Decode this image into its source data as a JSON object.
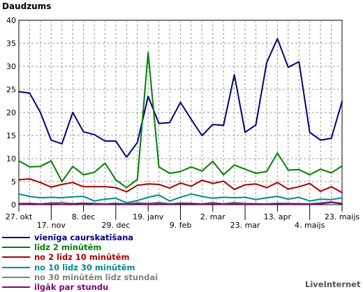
{
  "chart_data": {
    "type": "line",
    "title": "Daudzums",
    "xlabel": "",
    "ylabel": "",
    "ylim": [
      0,
      40
    ],
    "yticks": [
      "0",
      "5",
      "10",
      "15",
      "20",
      "25",
      "30",
      "35",
      "40"
    ],
    "xtick_labels": [
      "27. okt",
      "17. nov",
      "8. dec",
      "29. dec",
      "19. janv",
      "9. feb",
      "2. mar",
      "23. mar",
      "13. apr",
      "4. maijs",
      "23. maijs"
    ],
    "x": [
      "27. okt",
      "3. nov",
      "10. nov",
      "17. nov",
      "24. nov",
      "1. dec",
      "8. dec",
      "15. dec",
      "22. dec",
      "29. dec",
      "5. janv",
      "12. janv",
      "19. janv",
      "26. janv",
      "2. feb",
      "9. feb",
      "16. feb",
      "23. feb",
      "2. mar",
      "9. mar",
      "16. mar",
      "23. mar",
      "30. mar",
      "6. apr",
      "13. apr",
      "20. apr",
      "27. apr",
      "4. maijs",
      "11. maijs",
      "18. maijs",
      "23. maijs"
    ],
    "grid": true,
    "legend_position": "bottom-left",
    "series": [
      {
        "name": "vienīga caurskatīšana",
        "color": "#000080",
        "values": [
          24.5,
          24.2,
          20,
          14,
          13.2,
          20,
          15.8,
          15.2,
          13.8,
          13.8,
          10.3,
          13.5,
          23.5,
          17.6,
          17.8,
          22.2,
          18.5,
          15,
          17.4,
          17.2,
          28.2,
          15.7,
          17.3,
          30.8,
          36,
          29.8,
          31,
          15.7,
          14,
          14.4,
          22.4
        ]
      },
      {
        "name": "līdz 2 minūtēm",
        "color": "#008000",
        "values": [
          9.5,
          8.2,
          8.3,
          9.5,
          5,
          8.3,
          6.5,
          7,
          9,
          5.4,
          3.7,
          5.5,
          33,
          8.2,
          6.8,
          7.2,
          8.2,
          7.3,
          9.4,
          6.5,
          8.6,
          7.7,
          6.8,
          7.2,
          11.2,
          7.5,
          7.6,
          6.5,
          7.7,
          6.9,
          8.4
        ]
      },
      {
        "name": "no 2 līdz 10 minūtēm",
        "color": "#aa0000",
        "values": [
          5.4,
          5.6,
          4.8,
          3.8,
          4.4,
          4.8,
          3.9,
          3.9,
          3.9,
          3.7,
          2.8,
          4.2,
          4.5,
          4.4,
          3.6,
          4.7,
          4,
          5.3,
          4.6,
          5.1,
          3.3,
          4.3,
          4.5,
          3.7,
          4.8,
          3.4,
          3.9,
          4.6,
          2.9,
          3.9,
          2.6
        ]
      },
      {
        "name": "no 10 līdz 30 minūtēm",
        "color": "#008b8b",
        "values": [
          2.3,
          1.8,
          1.5,
          1.6,
          1.5,
          1.7,
          1.8,
          0.8,
          1.2,
          1.4,
          0.4,
          0.9,
          1.6,
          2.1,
          0.8,
          1.6,
          2.3,
          1.8,
          1.4,
          1.6,
          1.5,
          1.6,
          1.1,
          1.5,
          1.8,
          1.2,
          1.6,
          0.8,
          1.2,
          1.1,
          1.5
        ]
      },
      {
        "name": "no 30 minūtēm līdz stundai",
        "color": "#808080",
        "values": [
          0.3,
          0.3,
          0.2,
          0.4,
          0.5,
          0.2,
          0.3,
          0.3,
          0.2,
          0.3,
          0.2,
          0.4,
          0.3,
          0.5,
          0.2,
          0.4,
          0.3,
          0.2,
          0.5,
          0.2,
          0.5,
          0.3,
          0.2,
          0.2,
          0.3,
          0.3,
          0.2,
          0.2,
          0.4,
          0.6,
          0.3
        ]
      },
      {
        "name": "ilgāk par stundu",
        "color": "#800080",
        "values": [
          0.1,
          0.2,
          0.1,
          0.2,
          0.1,
          0.2,
          0.3,
          0.1,
          0.1,
          0.2,
          0.1,
          0.2,
          0.1,
          0.2,
          0.1,
          0.2,
          0.2,
          0.1,
          0.2,
          0.1,
          0.2,
          0.1,
          0.2,
          0.1,
          0.2,
          0.1,
          0.2,
          0.1,
          0.2,
          0.5,
          0.2
        ]
      }
    ]
  },
  "brand": "LiveInternet"
}
